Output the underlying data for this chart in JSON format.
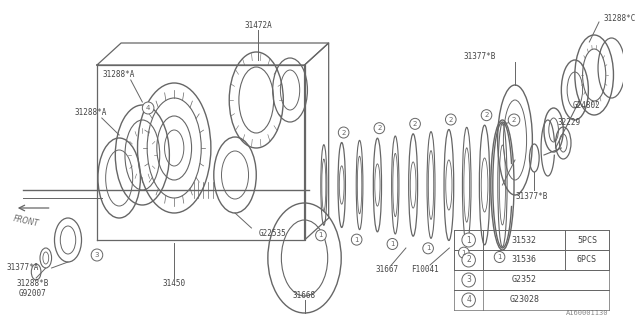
{
  "bg_color": "#ffffff",
  "line_color": "#666666",
  "part_number_color": "#444444",
  "table_data": [
    {
      "num": "1",
      "part": "31532",
      "qty": "5PCS"
    },
    {
      "num": "2",
      "part": "31536",
      "qty": "6PCS"
    },
    {
      "num": "3",
      "part": "G2352",
      "qty": ""
    },
    {
      "num": "4",
      "part": "G23028",
      "qty": ""
    }
  ],
  "footnote": "A160001130"
}
